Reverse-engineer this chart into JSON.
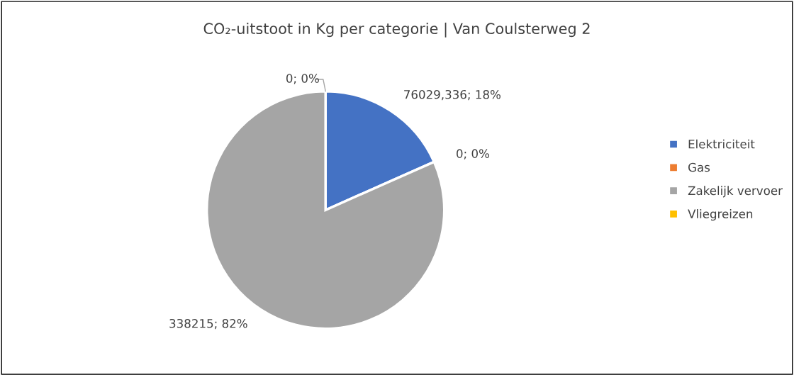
{
  "chart_data": {
    "type": "pie",
    "title": "CO₂-uitstoot in Kg per categorie | Van Coulsterweg 2",
    "categories": [
      "Elektriciteit",
      "Gas",
      "Zakelijk vervoer",
      "Vliegreizen"
    ],
    "values": [
      76029.336,
      0,
      338215,
      0
    ],
    "colors": [
      "#4472c4",
      "#ed7d31",
      "#a5a5a5",
      "#ffc000"
    ],
    "value_labels": [
      "76029,336; 18%",
      "0; 0%",
      "338215; 82%",
      "0; 0%"
    ],
    "legend": "right"
  }
}
